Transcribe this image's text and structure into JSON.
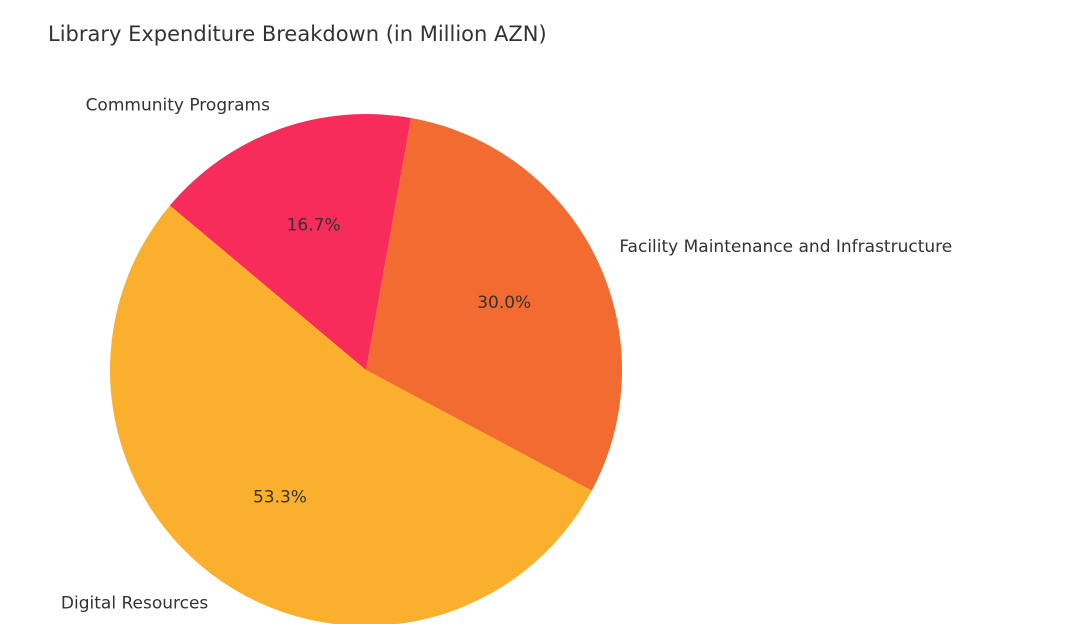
{
  "chart_data": {
    "type": "pie",
    "title": "Library Expenditure Breakdown (in Million AZN)",
    "categories": [
      "Digital Resources",
      "Facility Maintenance and Infrastructure",
      "Community Programs"
    ],
    "values": [
      53.3,
      30.0,
      16.7
    ],
    "value_labels": [
      "53.3%",
      "30.0%",
      "16.7%"
    ],
    "colors": [
      "#fbb02d",
      "#f26b30",
      "#f72c5b"
    ]
  }
}
